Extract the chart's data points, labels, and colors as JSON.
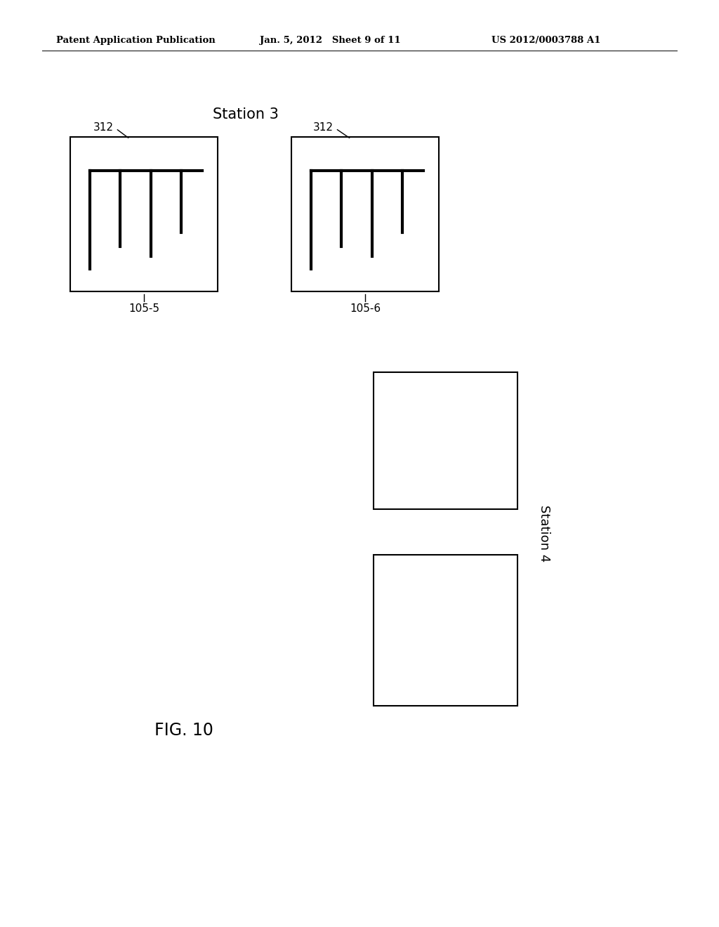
{
  "bg_color": "#ffffff",
  "header_left": "Patent Application Publication",
  "header_mid": "Jan. 5, 2012   Sheet 9 of 11",
  "header_right": "US 2012/0003788 A1",
  "station3_label": "Station 3",
  "station4_label": "Station 4",
  "fig_label": "FIG. 10",
  "box1_label": "105-5",
  "box2_label": "105-6",
  "ref_label": "312",
  "page_width": 10.24,
  "page_height": 13.2
}
